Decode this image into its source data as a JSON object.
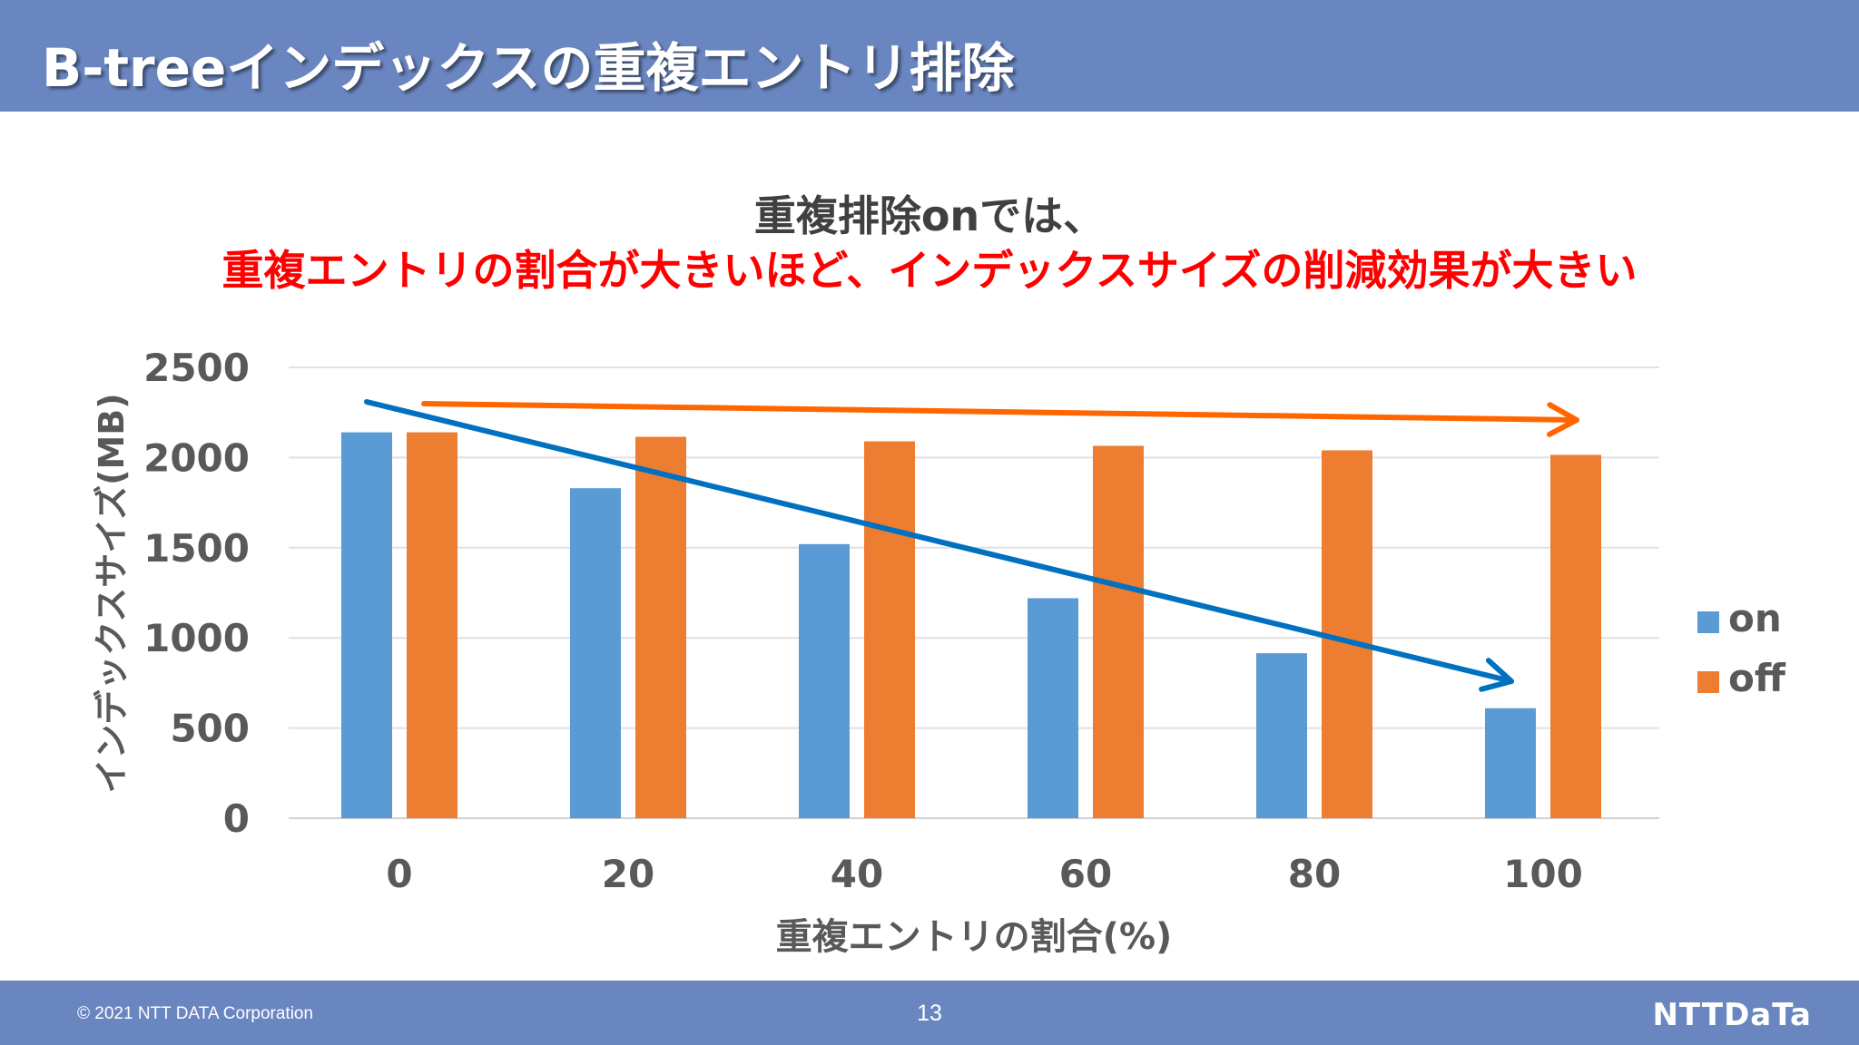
{
  "slide": {
    "title": "B-treeインデックスの重複エントリ排除",
    "headline_line1": "重複排除onでは、",
    "headline_line2": "重複エントリの割合が大きいほど、インデックスサイズの削減効果が大きい",
    "headline_line2_color": "#ff0000"
  },
  "chart_data": {
    "type": "bar",
    "categories": [
      "0",
      "20",
      "40",
      "60",
      "80",
      "100"
    ],
    "series": [
      {
        "name": "on",
        "values": [
          2140,
          1830,
          1520,
          1220,
          915,
          610
        ],
        "color": "#5b9bd5"
      },
      {
        "name": "off",
        "values": [
          2140,
          2115,
          2090,
          2065,
          2040,
          2015
        ],
        "color": "#ed7d31"
      }
    ],
    "ylim": [
      0,
      2500
    ],
    "yticks": [
      "0",
      "500",
      "1000",
      "1500",
      "2000",
      "2500"
    ],
    "xlabel": "重複エントリの割合(%)",
    "ylabel": "インデックスサイズ(MB)",
    "grid": true,
    "legend_position": "right",
    "trend_arrows": [
      {
        "series": "on",
        "color": "#0070c0"
      },
      {
        "series": "off",
        "color": "#ff6600"
      }
    ]
  },
  "footer": {
    "copyright": "© 2021 NTT DATA Corporation",
    "page_number": "13",
    "logo_text": "NTTDaTa"
  }
}
